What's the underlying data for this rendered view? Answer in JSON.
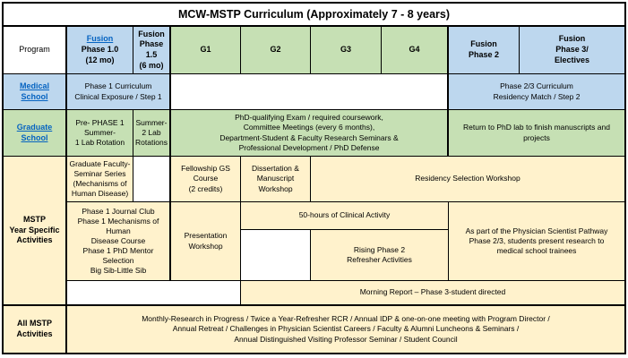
{
  "title": "MCW-MSTP Curriculum (Approximately 7 - 8 years)",
  "colors": {
    "phase_blue": "#BDD7EE",
    "grad_green": "#C6E0B4",
    "activity_tan": "#FFF2CC",
    "hyperlink_blue": "#0563C1",
    "border_black": "#000000"
  },
  "header": {
    "program": "Program",
    "fusion_link": "Fusion",
    "phase10": "Phase 1.0\n(12 mo)",
    "phase15": "Fusion\nPhase\n1.5\n(6 mo)",
    "g1": "G1",
    "g2": "G2",
    "g3": "G3",
    "g4": "G4",
    "phase2": "Fusion\nPhase 2",
    "phase3": "Fusion\nPhase 3/\nElectives"
  },
  "medical_school": {
    "label": "Medical School",
    "phase1_curriculum": "Phase 1 Curriculum\nClinical Exposure / Step 1",
    "phase23_curriculum": "Phase 2/3 Curriculum\nResidency Match / Step 2"
  },
  "graduate_school": {
    "label": "Graduate School",
    "pre_phase1": "Pre- PHASE 1\nSummer-\n1 Lab Rotation",
    "summer2": "Summer-\n2 Lab\nRotations",
    "phd_qualifying": "PhD-qualifying Exam / required coursework,\nCommittee Meetings (every 6 months),\nDepartment-Student & Faculty Research Seminars &\nProfessional Development / PhD Defense",
    "return_to_lab": "Return to PhD lab to finish manuscripts and\nprojects"
  },
  "year_specific": {
    "label": "MSTP\nYear Specific\nActivities",
    "grad_faculty_seminar": "Graduate Faculty-\nSeminar Series\n(Mechanisms of\nHuman Disease)",
    "fellowship_course": "Fellowship GS\nCourse\n(2 credits)",
    "dissertation_workshop": "Dissertation &\nManuscript\nWorkshop",
    "residency_workshop": "Residency Selection Workshop",
    "phase1_activities": "Phase 1 Journal Club\nPhase 1 Mechanisms of\nHuman\nDisease Course\nPhase 1 PhD Mentor\nSelection\nBig Sib-Little Sib",
    "presentation_workshop": "Presentation\nWorkshop",
    "clinical_hours": "50-hours of Clinical Activity",
    "rising_phase2": "Rising Phase 2\nRefresher Activities",
    "physician_pathway": "As part of the Physician Scientist Pathway\nPhase 2/3, students present research to\nmedical school trainees",
    "morning_report": "Morning Report – Phase 3-student directed"
  },
  "all_mstp": {
    "label": "All MSTP\nActivities",
    "content": "Monthly-Research in Progress / Twice a Year-Refresher RCR / Annual IDP & one-on-one meeting with Program Director /\nAnnual Retreat / Challenges in Physician Scientist Careers / Faculty & Alumni Luncheons & Seminars /\nAnnual Distinguished Visiting Professor Seminar / Student Council"
  }
}
